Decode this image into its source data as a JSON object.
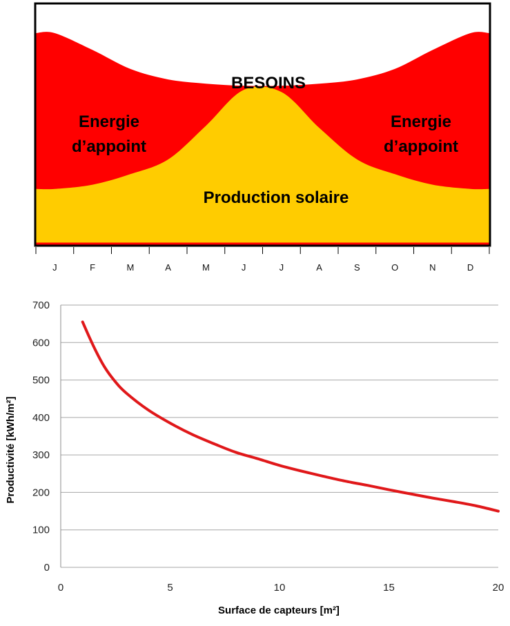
{
  "chart_data": [
    {
      "type": "area",
      "categories": [
        "J",
        "F",
        "M",
        "A",
        "M",
        "J",
        "J",
        "A",
        "S",
        "O",
        "N",
        "D"
      ],
      "series": [
        {
          "name": "BESOINS",
          "values": [
            100,
            92,
            83,
            78,
            76,
            75,
            75,
            76,
            78,
            83,
            92,
            100
          ]
        },
        {
          "name": "Production solaire",
          "values": [
            26,
            28,
            33,
            40,
            56,
            73,
            72,
            55,
            40,
            33,
            28,
            26
          ]
        }
      ],
      "labels": {
        "besoins": "BESOINS",
        "appoint_left_1": "Energie",
        "appoint_left_2": "d’appoint",
        "appoint_right_1": "Energie",
        "appoint_right_2": "d’appoint",
        "production": "Production solaire"
      },
      "colors": {
        "besoins_fill": "#ff0000",
        "production_fill": "#ffcc00",
        "frame": "#000000"
      },
      "ylim": [
        0,
        100
      ]
    },
    {
      "type": "line",
      "title": "",
      "xlabel": "Surface de capteurs [m²]",
      "ylabel": "Productivité [kWh/m²]",
      "xlim": [
        0,
        20
      ],
      "ylim": [
        0,
        700
      ],
      "xticks": [
        0,
        5,
        10,
        15,
        20
      ],
      "yticks": [
        0,
        100,
        200,
        300,
        400,
        500,
        600,
        700
      ],
      "grid": true,
      "series": [
        {
          "color": "#e0181a",
          "x": [
            1,
            1.5,
            2,
            2.5,
            3,
            4,
            5,
            6,
            7,
            8,
            9,
            10,
            11,
            12,
            13,
            14,
            15,
            16,
            17,
            18,
            19,
            20
          ],
          "y": [
            655,
            590,
            535,
            495,
            465,
            420,
            385,
            355,
            330,
            307,
            290,
            272,
            257,
            243,
            230,
            219,
            207,
            196,
            185,
            175,
            164,
            150
          ]
        }
      ]
    }
  ]
}
